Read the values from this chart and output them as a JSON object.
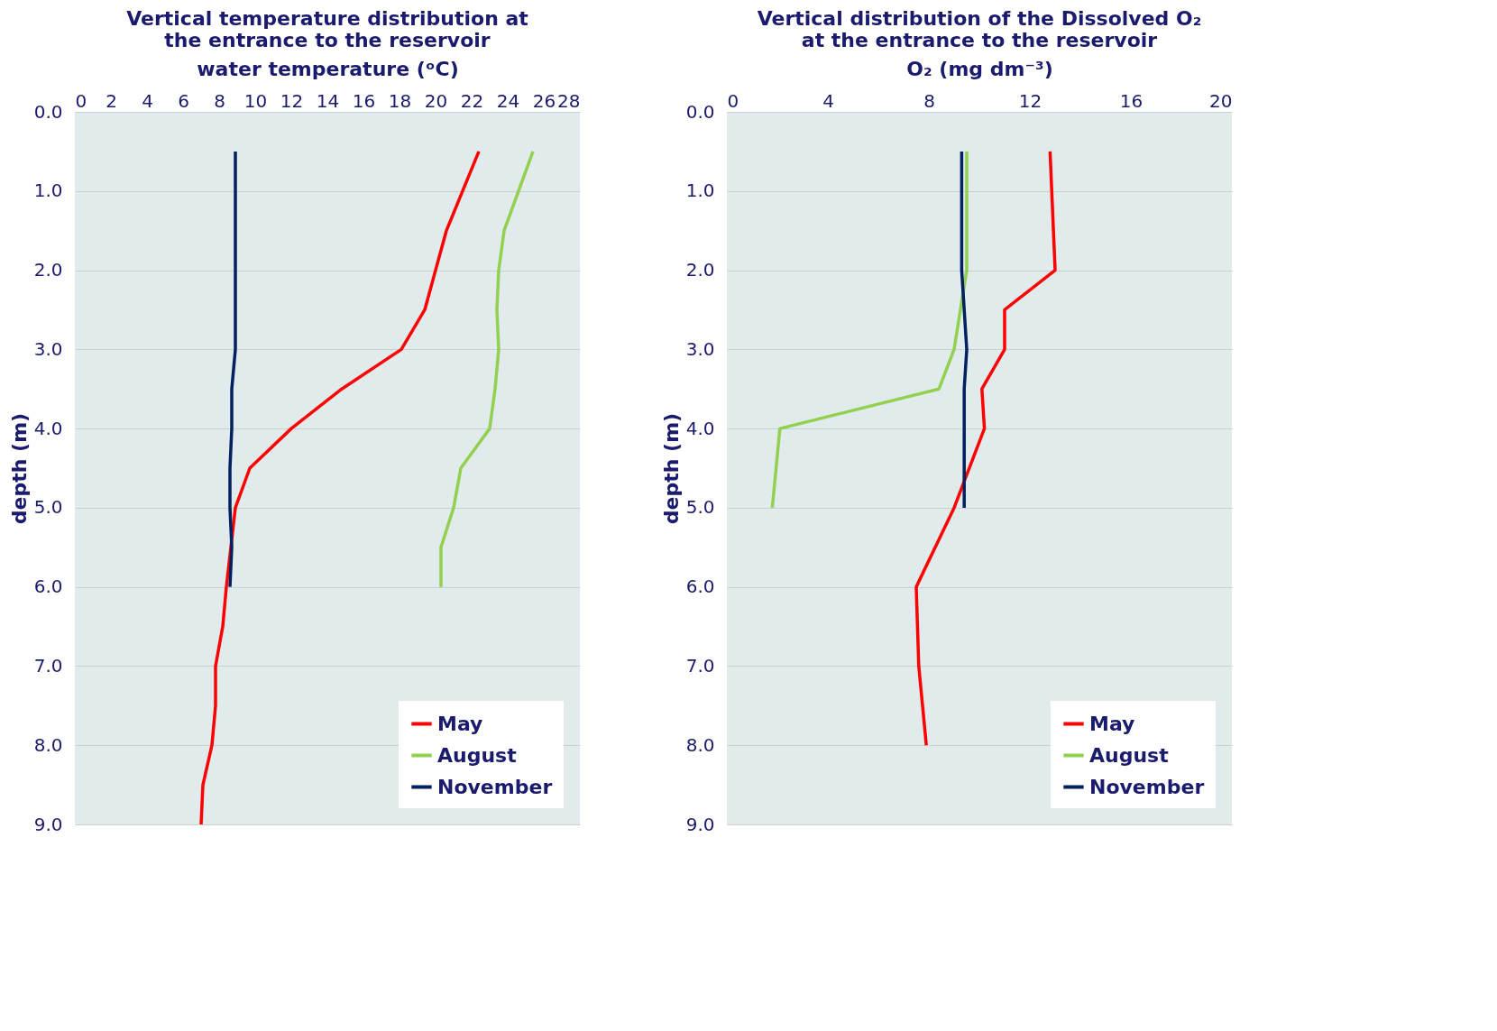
{
  "chart_data": [
    {
      "type": "line",
      "title": [
        "Vertical temperature distribution at",
        "the entrance to the reservoir"
      ],
      "xlabel": "water  temperature (ᵒC)",
      "ylabel": "depth (m)",
      "xlim": [
        0,
        28
      ],
      "xticks": [
        0,
        2,
        4,
        6,
        8,
        10,
        12,
        14,
        16,
        18,
        20,
        22,
        24,
        26,
        28
      ],
      "ylim": [
        9,
        0
      ],
      "yticks": [
        {
          "value": 0,
          "label": "0.0"
        },
        {
          "value": 1,
          "label": "1.0"
        },
        {
          "value": 2,
          "label": "2.0"
        },
        {
          "value": 3,
          "label": "3.0"
        },
        {
          "value": 4,
          "label": "4.0"
        },
        {
          "value": 5,
          "label": "5.0"
        },
        {
          "value": 6,
          "label": "6.0"
        },
        {
          "value": 7,
          "label": "7.0"
        },
        {
          "value": 8,
          "label": "8.0"
        },
        {
          "value": 9,
          "label": "9.0"
        }
      ],
      "grid": "y",
      "legend": "bottom right",
      "marker": "none",
      "line_style": "solid",
      "series": [
        {
          "name": "May",
          "color": "#ff0000",
          "x": [
            22.4,
            20.6,
            20.0,
            19.4,
            18.1,
            14.8,
            12.0,
            9.7,
            8.9,
            8.4,
            8.2,
            7.8,
            7.8,
            7.6,
            7.1,
            7.0
          ],
          "values": [
            0.5,
            1.5,
            2.0,
            2.5,
            3.0,
            3.5,
            4.0,
            4.5,
            5.0,
            6.0,
            6.5,
            7.0,
            7.5,
            8.0,
            8.5,
            9.0
          ]
        },
        {
          "name": "August",
          "color": "#92d050",
          "x": [
            25.4,
            23.8,
            23.5,
            23.4,
            23.5,
            23.3,
            23.0,
            21.4,
            21.0,
            20.3,
            20.3
          ],
          "values": [
            0.5,
            1.5,
            2.0,
            2.5,
            3.0,
            3.5,
            4.0,
            4.5,
            5.0,
            5.5,
            6.0
          ]
        },
        {
          "name": "November",
          "color": "#002060",
          "x": [
            8.9,
            8.9,
            8.7,
            8.7,
            8.6,
            8.6,
            8.7,
            8.6
          ],
          "values": [
            0.5,
            3.0,
            3.5,
            4.0,
            4.5,
            5.0,
            5.5,
            6.0
          ]
        }
      ]
    },
    {
      "type": "line",
      "title": [
        "Vertical distribution of the Dissolved O₂",
        "at the entrance to the reservoir"
      ],
      "xlabel": "O₂ (mg dm⁻³)",
      "ylabel": "depth (m)",
      "xlim": [
        0,
        20
      ],
      "xticks": [
        0,
        4,
        8,
        12,
        16,
        20
      ],
      "ylim": [
        9,
        0
      ],
      "yticks": [
        {
          "value": 0,
          "label": "0.0"
        },
        {
          "value": 1,
          "label": "1.0"
        },
        {
          "value": 2,
          "label": "2.0"
        },
        {
          "value": 3,
          "label": "3.0"
        },
        {
          "value": 4,
          "label": "4.0"
        },
        {
          "value": 5,
          "label": "5.0"
        },
        {
          "value": 6,
          "label": "6.0"
        },
        {
          "value": 7,
          "label": "7.0"
        },
        {
          "value": 8,
          "label": "8.0"
        },
        {
          "value": 9,
          "label": "9.0"
        }
      ],
      "grid": "y",
      "legend": "bottom right",
      "marker": "none",
      "line_style": "solid",
      "series": [
        {
          "name": "May",
          "color": "#ff0000",
          "x": [
            12.8,
            13.0,
            11.0,
            11.0,
            10.1,
            10.2,
            9.0,
            7.5,
            7.6,
            7.9
          ],
          "values": [
            0.5,
            2.0,
            2.5,
            3.0,
            3.5,
            4.0,
            5.0,
            6.0,
            7.0,
            8.0
          ]
        },
        {
          "name": "August",
          "color": "#92d050",
          "x": [
            9.5,
            9.5,
            9.0,
            8.4,
            2.1,
            1.8
          ],
          "values": [
            0.5,
            2.0,
            3.0,
            3.5,
            4.0,
            5.0
          ]
        },
        {
          "name": "November",
          "color": "#002060",
          "x": [
            9.3,
            9.3,
            9.5,
            9.4,
            9.4,
            9.4
          ],
          "values": [
            0.5,
            2.0,
            3.0,
            3.5,
            4.0,
            5.0
          ]
        }
      ]
    }
  ]
}
